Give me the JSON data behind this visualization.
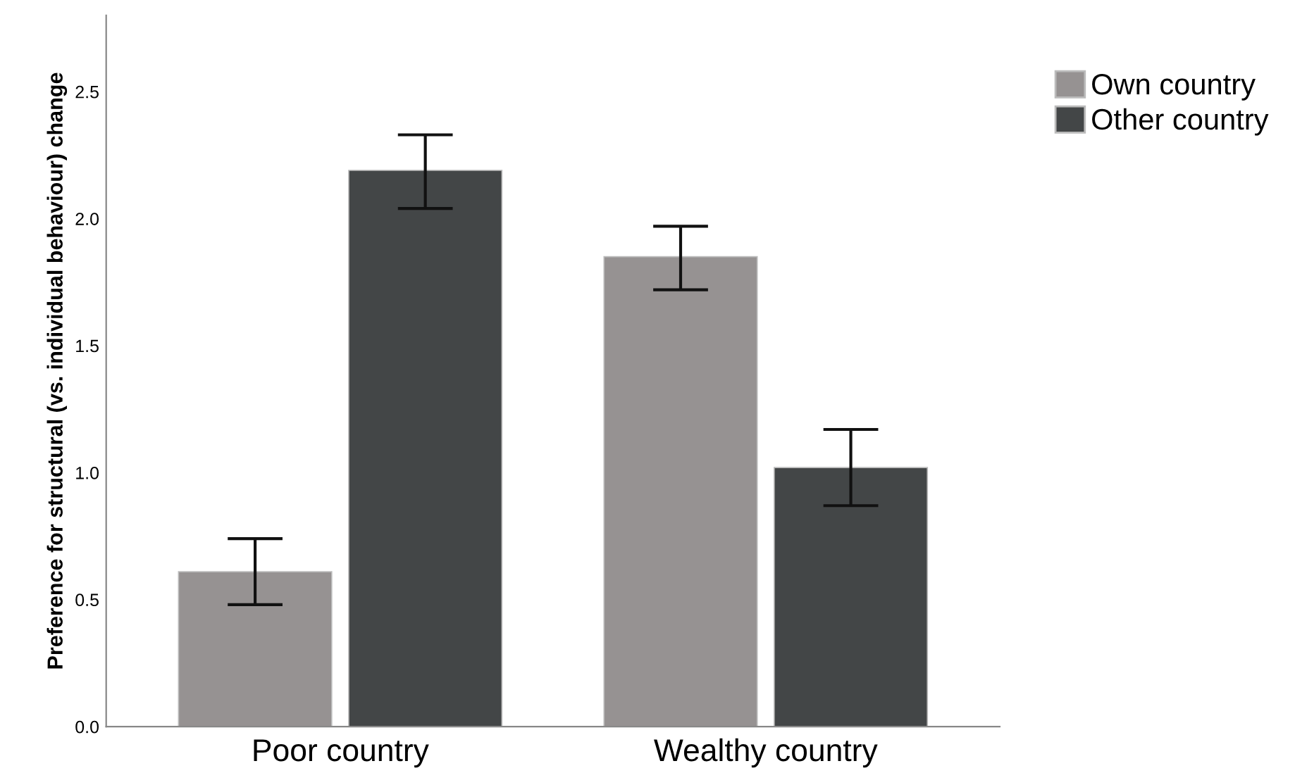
{
  "chart_data": {
    "type": "bar",
    "ylabel": "Preference for structural (vs. individual behaviour) change",
    "categories": [
      "Poor country",
      "Wealthy country"
    ],
    "series": [
      {
        "name": "Own country",
        "color": "#969292",
        "values": [
          0.61,
          1.85
        ],
        "errors": [
          [
            0.48,
            0.74
          ],
          [
            1.72,
            1.97
          ]
        ]
      },
      {
        "name": "Other country",
        "color": "#434647",
        "values": [
          2.19,
          1.02
        ],
        "errors": [
          [
            2.04,
            2.33
          ],
          [
            0.87,
            1.17
          ]
        ]
      }
    ],
    "ylim": [
      0,
      2.8
    ],
    "yticks": [
      {
        "value": 0,
        "label": "0.0"
      },
      {
        "value": 0.5,
        "label": "0.5"
      },
      {
        "value": 1,
        "label": "1.0"
      },
      {
        "value": 1.5,
        "label": "1.5"
      },
      {
        "value": 2,
        "label": "2.0"
      },
      {
        "value": 2.5,
        "label": "2.5"
      }
    ],
    "grid": false,
    "legend": "top right"
  }
}
